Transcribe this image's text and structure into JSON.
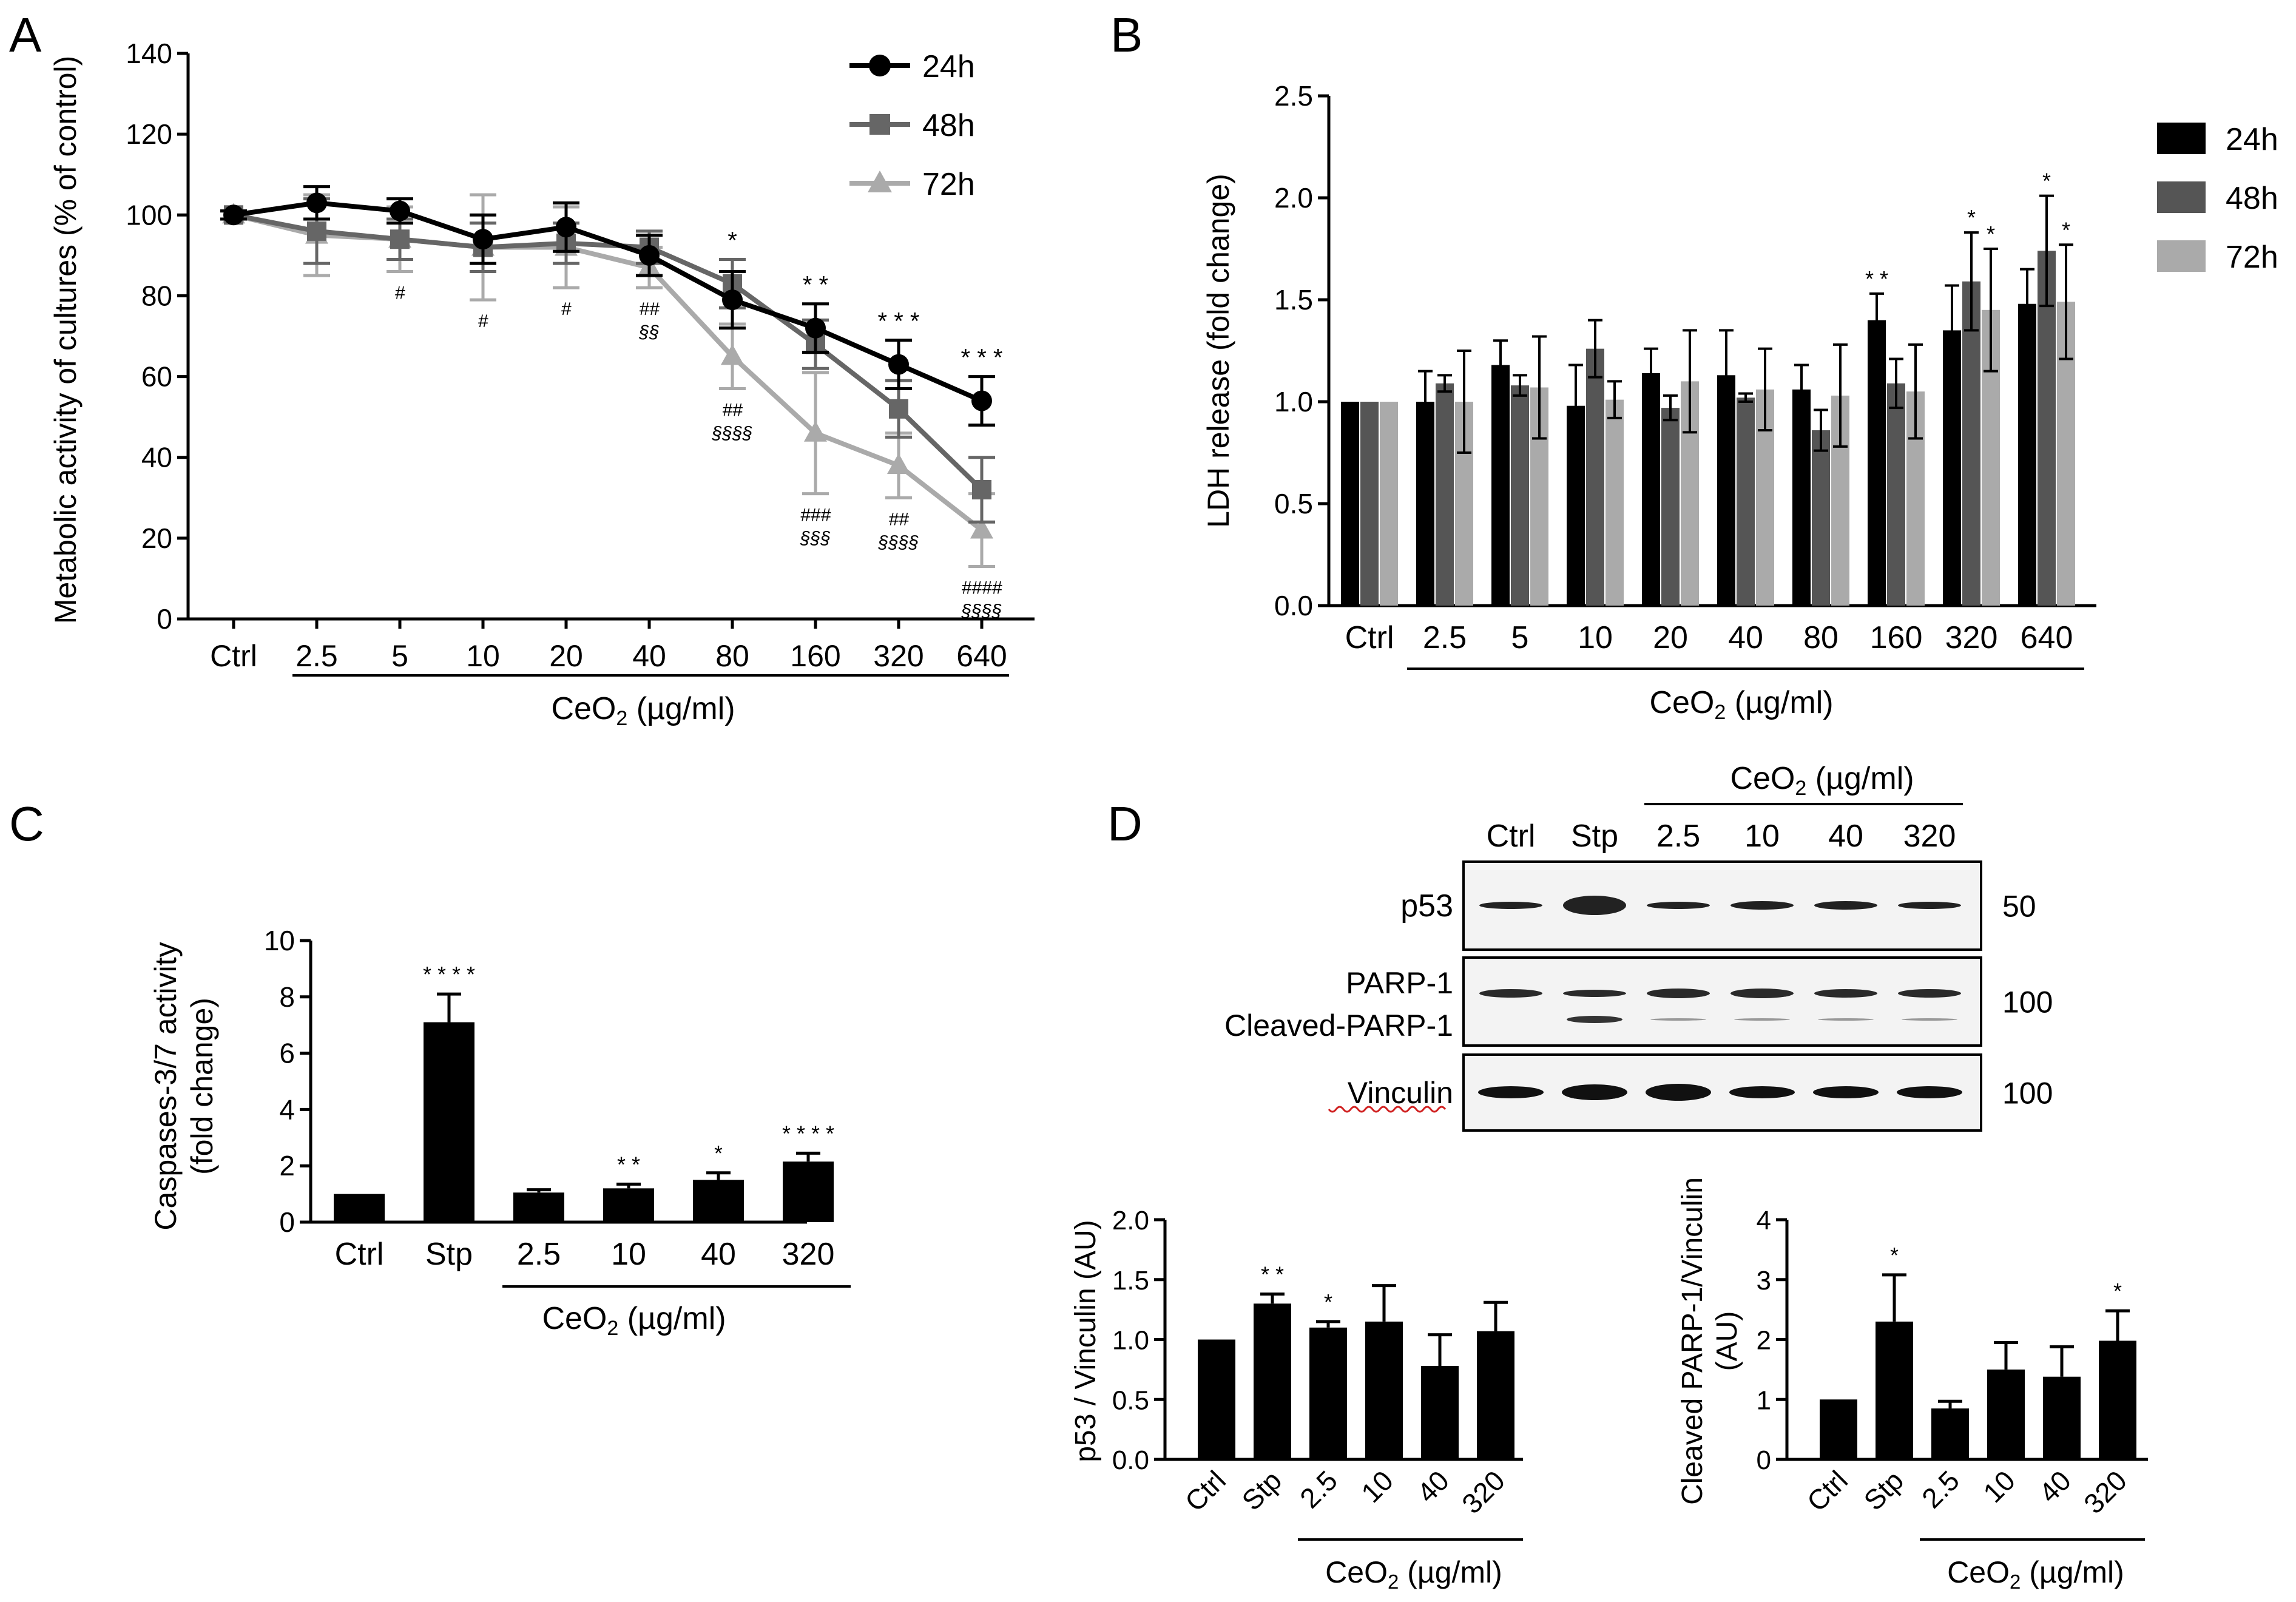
{
  "chart_data": [
    {
      "panel": "A",
      "type": "line",
      "ylabel": "Metabolic activity of cultures (% of control)",
      "xlabel": "CeO₂ (µg/ml)",
      "xlabel_base": "CeO",
      "xlabel_sub": "2",
      "xlabel_rest": " (µg/ml)",
      "categories": [
        "Ctrl",
        "2.5",
        "5",
        "10",
        "20",
        "40",
        "80",
        "160",
        "320",
        "640"
      ],
      "ylim": [
        0,
        140
      ],
      "yticks": [
        "0",
        "20",
        "40",
        "60",
        "80",
        "100",
        "120",
        "140"
      ],
      "series": [
        {
          "name": "24h",
          "color": "#000000",
          "marker": "circle",
          "values": [
            100,
            103,
            101,
            94,
            97,
            90,
            79,
            72,
            63,
            54
          ],
          "errors": [
            1,
            4,
            3,
            6,
            6,
            5,
            7,
            6,
            6,
            6
          ]
        },
        {
          "name": "48h",
          "color": "#666666",
          "marker": "square",
          "values": [
            100,
            96,
            94,
            92,
            93,
            92,
            83,
            68,
            52,
            32
          ],
          "errors": [
            1,
            8,
            5,
            6,
            5,
            4,
            6,
            6,
            7,
            8
          ]
        },
        {
          "name": "72h",
          "color": "#aaaaaa",
          "marker": "triangle",
          "values": [
            100,
            95,
            94,
            92,
            92,
            87,
            65,
            46,
            38,
            22
          ],
          "errors": [
            1,
            10,
            8,
            13,
            10,
            5,
            8,
            15,
            8,
            9
          ]
        }
      ],
      "annotations": [
        {
          "cat": 6,
          "text": "*"
        },
        {
          "cat": 7,
          "text": "* *"
        },
        {
          "cat": 8,
          "text": "* * *"
        },
        {
          "cat": 9,
          "text": "* * *"
        }
      ],
      "below_annotations": [
        {
          "cat": 2,
          "lines": [
            "#"
          ]
        },
        {
          "cat": 3,
          "lines": [
            "#"
          ]
        },
        {
          "cat": 4,
          "lines": [
            "#"
          ]
        },
        {
          "cat": 5,
          "lines": [
            "##",
            "§§"
          ]
        },
        {
          "cat": 6,
          "lines": [
            "##",
            "§§§§"
          ]
        },
        {
          "cat": 7,
          "lines": [
            "###",
            "§§§"
          ]
        },
        {
          "cat": 8,
          "lines": [
            "##",
            "§§§§"
          ]
        },
        {
          "cat": 9,
          "lines": [
            "####",
            "§§§§"
          ]
        }
      ]
    },
    {
      "panel": "B",
      "type": "bar",
      "ylabel": "LDH release (fold change)",
      "xlabel_base": "CeO",
      "xlabel_sub": "2",
      "xlabel_rest": " (µg/ml)",
      "categories": [
        "Ctrl",
        "2.5",
        "5",
        "10",
        "20",
        "40",
        "80",
        "160",
        "320",
        "640"
      ],
      "ylim": [
        0,
        2.5
      ],
      "yticks": [
        "0.0",
        "0.5",
        "1.0",
        "1.5",
        "2.0",
        "2.5"
      ],
      "series": [
        {
          "name": "24h",
          "color": "#000000",
          "values": [
            1.0,
            1.0,
            1.18,
            0.98,
            1.14,
            1.13,
            1.06,
            1.4,
            1.35,
            1.48
          ],
          "errors": [
            0,
            0.15,
            0.12,
            0.2,
            0.12,
            0.22,
            0.12,
            0.13,
            0.22,
            0.17
          ]
        },
        {
          "name": "48h",
          "color": "#555555",
          "values": [
            1.0,
            1.09,
            1.08,
            1.26,
            0.97,
            1.02,
            0.86,
            1.09,
            1.59,
            1.74
          ],
          "errors": [
            0,
            0.04,
            0.05,
            0.14,
            0.06,
            0.02,
            0.1,
            0.12,
            0.24,
            0.27
          ]
        },
        {
          "name": "72h",
          "color": "#aaaaaa",
          "values": [
            1.0,
            1.0,
            1.07,
            1.01,
            1.1,
            1.06,
            1.03,
            1.05,
            1.45,
            1.49
          ],
          "errors": [
            0,
            0.25,
            0.25,
            0.09,
            0.25,
            0.2,
            0.25,
            0.23,
            0.3,
            0.28
          ]
        }
      ],
      "annotations": [
        {
          "cat": 7,
          "series": 0,
          "text": "* *"
        },
        {
          "cat": 8,
          "series": 1,
          "text": "*"
        },
        {
          "cat": 8,
          "series": 2,
          "text": "*"
        },
        {
          "cat": 9,
          "series": 1,
          "text": "*"
        },
        {
          "cat": 9,
          "series": 2,
          "text": "*"
        }
      ]
    },
    {
      "panel": "C",
      "type": "bar",
      "ylabel_line1": "Caspases-3/7 activity",
      "ylabel_line2": "(fold change)",
      "xlabel_base": "CeO",
      "xlabel_sub": "2",
      "xlabel_rest": " (µg/ml)",
      "categories": [
        "Ctrl",
        "Stp",
        "2.5",
        "10",
        "40",
        "320"
      ],
      "ylim": [
        0,
        10
      ],
      "yticks": [
        "0",
        "2",
        "4",
        "6",
        "8",
        "10"
      ],
      "values": [
        1.0,
        7.1,
        1.05,
        1.2,
        1.5,
        2.15
      ],
      "errors": [
        0,
        1.0,
        0.1,
        0.15,
        0.25,
        0.3
      ],
      "annotations": [
        "",
        "* * * *",
        "",
        "* *",
        "*",
        "* * * *"
      ]
    },
    {
      "panel": "D-left",
      "type": "bar",
      "ylabel": "p53 / Vinculin (AU)",
      "xlabel_base": "CeO",
      "xlabel_sub": "2",
      "xlabel_rest": " (µg/ml)",
      "categories": [
        "Ctrl",
        "Stp",
        "2.5",
        "10",
        "40",
        "320"
      ],
      "ylim": [
        0,
        2.0
      ],
      "yticks": [
        "0.0",
        "0.5",
        "1.0",
        "1.5",
        "2.0"
      ],
      "values": [
        1.0,
        1.3,
        1.1,
        1.15,
        0.78,
        1.07
      ],
      "errors": [
        0,
        0.08,
        0.05,
        0.3,
        0.26,
        0.24
      ],
      "annotations": [
        "",
        "* *",
        "*",
        "",
        "",
        ""
      ]
    },
    {
      "panel": "D-right",
      "type": "bar",
      "ylabel_line1": "Cleaved PARP-1/Vinculin",
      "ylabel_line2": "(AU)",
      "xlabel_base": "CeO",
      "xlabel_sub": "2",
      "xlabel_rest": " (µg/ml)",
      "categories": [
        "Ctrl",
        "Stp",
        "2.5",
        "10",
        "40",
        "320"
      ],
      "ylim": [
        0,
        4
      ],
      "yticks": [
        "0",
        "1",
        "2",
        "3",
        "4"
      ],
      "values": [
        1.0,
        2.3,
        0.85,
        1.5,
        1.38,
        1.98
      ],
      "errors": [
        0,
        0.78,
        0.12,
        0.45,
        0.5,
        0.5
      ],
      "annotations": [
        "",
        "*",
        "",
        "",
        "",
        "*"
      ]
    }
  ],
  "panels": {
    "a": "A",
    "b": "B",
    "c": "C",
    "d": "D"
  },
  "blot": {
    "header_base": "CeO",
    "header_sub": "2",
    "header_rest": " (µg/ml)",
    "lanes": [
      "Ctrl",
      "Stp",
      "2.5",
      "10",
      "40",
      "320"
    ],
    "rows": [
      {
        "label": "p53",
        "marker": "50"
      },
      {
        "label": "PARP-1",
        "label2": "Cleaved-PARP-1",
        "marker": "100"
      },
      {
        "label": "Vinculin",
        "marker": "100"
      }
    ]
  }
}
